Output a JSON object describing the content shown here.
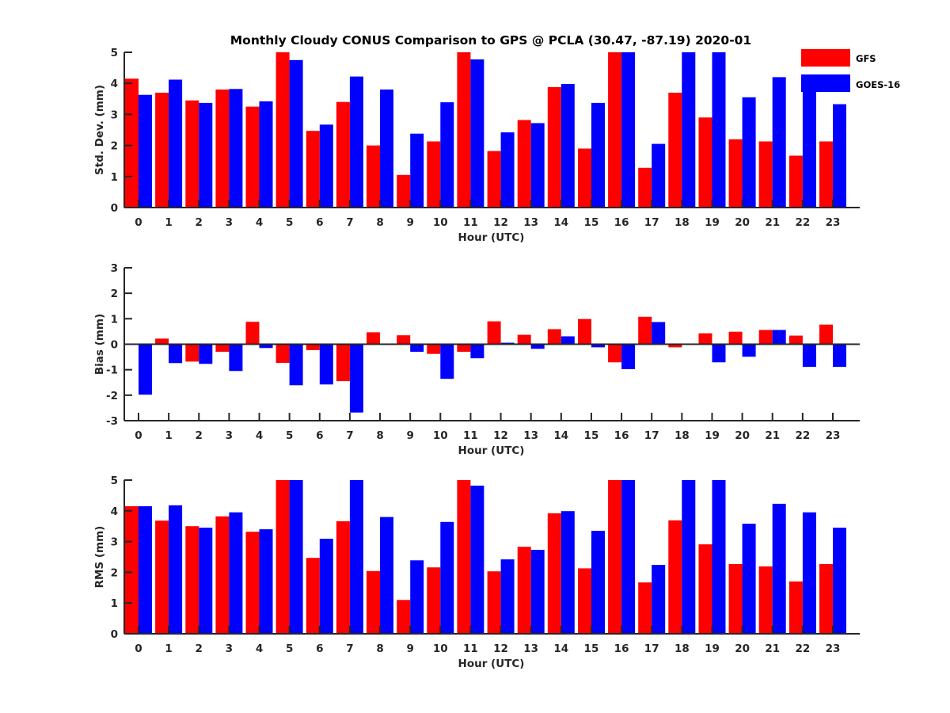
{
  "chart_data": [
    {
      "type": "bar",
      "title": "Monthly Cloudy CONUS Comparison to GPS @ PCLA (30.47, -87.19) 2020-01",
      "xlabel": "Hour (UTC)",
      "ylabel": "Std. Dev. (mm)",
      "ylim": [
        0,
        5
      ],
      "yticks": [
        "0",
        "1",
        "2",
        "3",
        "4",
        "5"
      ],
      "categories": [
        "0",
        "1",
        "2",
        "3",
        "4",
        "5",
        "6",
        "7",
        "8",
        "9",
        "10",
        "11",
        "12",
        "13",
        "14",
        "15",
        "16",
        "17",
        "18",
        "19",
        "20",
        "21",
        "22",
        "23"
      ],
      "series": [
        {
          "name": "GFS",
          "color": "#ff0000",
          "values": [
            4.15,
            3.7,
            3.45,
            3.8,
            3.25,
            5.0,
            2.47,
            3.4,
            2.0,
            1.05,
            2.13,
            5.0,
            1.82,
            2.82,
            3.88,
            1.9,
            5.0,
            1.28,
            3.7,
            2.9,
            2.2,
            2.13,
            1.67,
            2.13
          ]
        },
        {
          "name": "GOES-16",
          "color": "#0000ff",
          "values": [
            3.63,
            4.12,
            3.37,
            3.82,
            3.42,
            4.75,
            2.67,
            4.22,
            3.8,
            2.38,
            3.39,
            4.77,
            2.42,
            2.72,
            3.98,
            3.37,
            5.0,
            2.05,
            5.0,
            5.0,
            3.55,
            4.2,
            3.85,
            3.33
          ]
        }
      ],
      "legend": {
        "position": "top-right",
        "entries": [
          "GFS",
          "GOES-16"
        ]
      },
      "grid": false
    },
    {
      "type": "bar",
      "title": "",
      "xlabel": "Hour (UTC)",
      "ylabel": "Bias (mm)",
      "ylim": [
        -3,
        3
      ],
      "yticks": [
        "-3",
        "-2",
        "-1",
        "0",
        "1",
        "2",
        "3"
      ],
      "categories": [
        "0",
        "1",
        "2",
        "3",
        "4",
        "5",
        "6",
        "7",
        "8",
        "9",
        "10",
        "11",
        "12",
        "13",
        "14",
        "15",
        "16",
        "17",
        "18",
        "19",
        "20",
        "21",
        "22",
        "23"
      ],
      "series": [
        {
          "name": "GFS",
          "color": "#ff0000",
          "values": [
            0.02,
            0.22,
            -0.68,
            -0.3,
            0.88,
            -0.73,
            -0.23,
            -1.45,
            0.47,
            0.35,
            -0.38,
            -0.3,
            0.9,
            0.37,
            0.59,
            0.99,
            -0.71,
            1.08,
            -0.12,
            0.43,
            0.49,
            0.56,
            0.34,
            0.77
          ]
        },
        {
          "name": "GOES-16",
          "color": "#0000ff",
          "values": [
            -1.98,
            -0.74,
            -0.77,
            -1.05,
            -0.15,
            -1.61,
            -1.58,
            -2.68,
            -0.03,
            -0.3,
            -1.36,
            -0.55,
            0.06,
            -0.18,
            0.31,
            -0.12,
            -0.98,
            0.87,
            0.03,
            -0.71,
            -0.49,
            0.56,
            -0.89,
            -0.89
          ]
        }
      ],
      "zero_line": true,
      "grid": false
    },
    {
      "type": "bar",
      "title": "",
      "xlabel": "Hour (UTC)",
      "ylabel": "RMS (mm)",
      "ylim": [
        0,
        5
      ],
      "yticks": [
        "0",
        "1",
        "2",
        "3",
        "4",
        "5"
      ],
      "categories": [
        "0",
        "1",
        "2",
        "3",
        "4",
        "5",
        "6",
        "7",
        "8",
        "9",
        "10",
        "11",
        "12",
        "13",
        "14",
        "15",
        "16",
        "17",
        "18",
        "19",
        "20",
        "21",
        "22",
        "23"
      ],
      "series": [
        {
          "name": "GFS",
          "color": "#ff0000",
          "values": [
            4.15,
            3.68,
            3.5,
            3.82,
            3.32,
            5.0,
            2.47,
            3.66,
            2.04,
            1.1,
            2.16,
            5.0,
            2.03,
            2.83,
            3.92,
            2.13,
            5.0,
            1.67,
            3.69,
            2.91,
            2.27,
            2.19,
            1.7,
            2.27
          ]
        },
        {
          "name": "GOES-16",
          "color": "#0000ff",
          "values": [
            4.15,
            4.18,
            3.45,
            3.95,
            3.4,
            5.0,
            3.09,
            5.0,
            3.8,
            2.39,
            3.64,
            4.82,
            2.42,
            2.73,
            3.99,
            3.35,
            5.0,
            2.24,
            5.0,
            5.0,
            3.58,
            4.23,
            3.95,
            3.45
          ]
        }
      ],
      "grid": false
    }
  ]
}
